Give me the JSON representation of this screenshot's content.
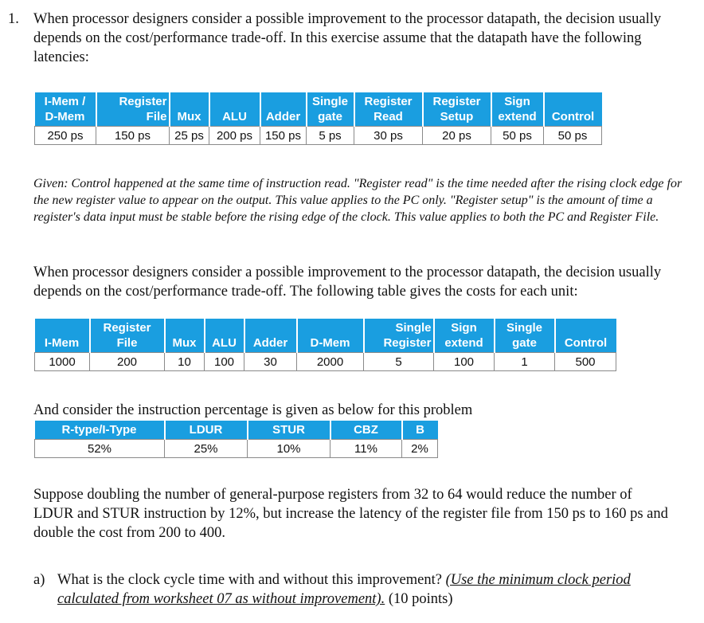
{
  "question": {
    "number": "1.",
    "intro": "When processor designers consider a possible improvement to the processor datapath, the decision usually depends on the cost/performance trade-off. In this exercise assume that the datapath have the following latencies:"
  },
  "latency_table": {
    "headers": [
      [
        "I-Mem /",
        "D-Mem"
      ],
      [
        "Register",
        "File"
      ],
      [
        "",
        "Mux"
      ],
      [
        "",
        "ALU"
      ],
      [
        "",
        "Adder"
      ],
      [
        "Single",
        "gate"
      ],
      [
        "Register",
        "Read"
      ],
      [
        "Register",
        "Setup"
      ],
      [
        "Sign",
        "extend"
      ],
      [
        "",
        "Control"
      ]
    ],
    "values": [
      "250 ps",
      "150 ps",
      "25 ps",
      "200 ps",
      "150 ps",
      "5 ps",
      "30 ps",
      "20 ps",
      "50 ps",
      "50 ps"
    ]
  },
  "given_note": "Given: Control happened at the same time of instruction read. \"Register read\" is the time needed after the rising clock edge for the new register value to appear on the output. This value applies to the PC only. \"Register setup\" is the amount of time a register's data input must be stable before the rising edge of the clock. This value applies to both the PC and Register File.",
  "cost_intro": "When processor designers consider a possible improvement to the processor datapath, the decision usually depends on the cost/performance trade-off. The following table gives the costs for each unit:",
  "cost_table": {
    "headers": [
      [
        "",
        "I-Mem"
      ],
      [
        "Register",
        "File"
      ],
      [
        "",
        "Mux"
      ],
      [
        "",
        "ALU"
      ],
      [
        "",
        "Adder"
      ],
      [
        "",
        "D-Mem"
      ],
      [
        "Single",
        "Register"
      ],
      [
        "Sign",
        "extend"
      ],
      [
        "Single",
        "gate"
      ],
      [
        "",
        "Control"
      ]
    ],
    "values": [
      "1000",
      "200",
      "10",
      "100",
      "30",
      "2000",
      "5",
      "100",
      "1",
      "500"
    ]
  },
  "instr_intro": "And consider the instruction percentage is given as below for this problem",
  "instr_table": {
    "headers": [
      "R-type/I-Type",
      "LDUR",
      "STUR",
      "CBZ",
      "B"
    ],
    "values": [
      "52%",
      "25%",
      "10%",
      "11%",
      "2%"
    ]
  },
  "suppose_text": "Suppose doubling the number of general-purpose registers from 32 to 64 would reduce the number of LDUR and STUR instruction by 12%, but increase the latency of the register file from 150 ps to 160 ps and double the cost from 200 to 400.",
  "part_a": {
    "label": "a)",
    "question": "What is the clock cycle time with and without this improvement?",
    "hint": "(Use the minimum clock period calculated from worksheet 07 as without improvement).",
    "points": "(10 points)"
  }
}
